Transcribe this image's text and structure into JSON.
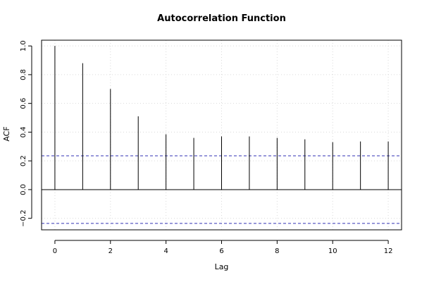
{
  "chart_data": {
    "type": "bar",
    "title": "Autocorrelation Function",
    "xlabel": "Lag",
    "ylabel": "ACF",
    "x": [
      0,
      1,
      2,
      3,
      4,
      5,
      6,
      7,
      8,
      9,
      10,
      11,
      12
    ],
    "values": [
      1.0,
      0.88,
      0.7,
      0.51,
      0.385,
      0.36,
      0.37,
      0.37,
      0.36,
      0.35,
      0.33,
      0.335,
      0.335
    ],
    "xlim": [
      -0.48,
      12.48
    ],
    "ylim": [
      -0.28,
      1.04
    ],
    "xticks": [
      0,
      2,
      4,
      6,
      8,
      10,
      12
    ],
    "yticks": [
      -0.2,
      0.0,
      0.2,
      0.4,
      0.6,
      0.8,
      1.0
    ],
    "xtick_labels": [
      "0",
      "2",
      "4",
      "6",
      "8",
      "10",
      "12"
    ],
    "ytick_labels": [
      "−0.2",
      "0.0",
      "0.2",
      "0.4",
      "0.6",
      "0.8",
      "1.0"
    ],
    "confidence_bounds": [
      0.2355,
      -0.2355
    ],
    "zero_line": 0,
    "grid": true,
    "colors": {
      "bars": "#000000",
      "confidence_lines": "#3232b4",
      "grid": "#d9d9d9",
      "frame": "#000000"
    }
  }
}
